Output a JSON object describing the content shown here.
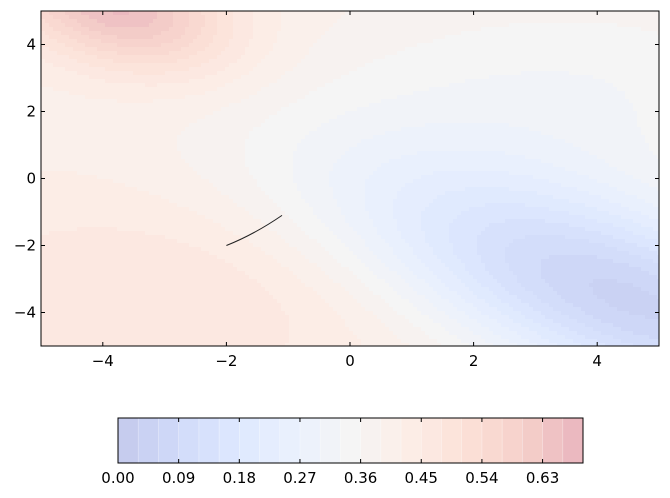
{
  "chart_data": {
    "type": "heatmap",
    "subtype": "filled-contour",
    "title": "",
    "xlabel": "",
    "ylabel": "",
    "xlim": [
      -5,
      5
    ],
    "ylim": [
      -5,
      5
    ],
    "x_ticks": [
      -4,
      -2,
      0,
      2,
      4
    ],
    "y_ticks": [
      -4,
      -2,
      0,
      2,
      4
    ],
    "x_tick_labels": [
      "−4",
      "−2",
      "0",
      "2",
      "4"
    ],
    "y_tick_labels": [
      "−4",
      "−2",
      "0",
      "2",
      "4"
    ],
    "colormap": "coolwarm",
    "alpha": 0.3,
    "value_range": [
      0.0,
      0.69
    ],
    "levels": 23,
    "grid": false,
    "colorbar": {
      "orientation": "horizontal",
      "placement": "bottom",
      "ticks": [
        0.0,
        0.09,
        0.18,
        0.27,
        0.36,
        0.45,
        0.54,
        0.63
      ],
      "tick_labels": [
        "0.00",
        "0.09",
        "0.18",
        "0.27",
        "0.36",
        "0.45",
        "0.54",
        "0.63"
      ]
    },
    "features": [
      {
        "description": "maximum region",
        "x": -3.5,
        "y": 4.5,
        "value": 0.69
      },
      {
        "description": "minimum region",
        "x": 4.0,
        "y": -3.0,
        "value": 0.0
      },
      {
        "description": "dark line segment",
        "points": [
          [
            -2.0,
            -2.0
          ],
          [
            -1.1,
            -1.1
          ]
        ]
      }
    ]
  }
}
